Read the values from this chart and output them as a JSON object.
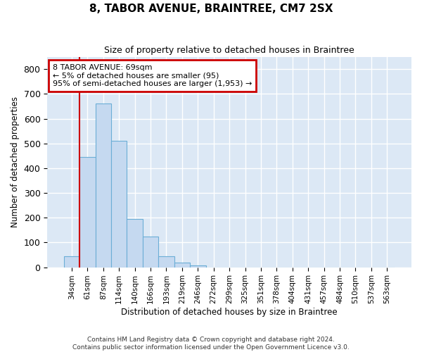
{
  "title": "8, TABOR AVENUE, BRAINTREE, CM7 2SX",
  "subtitle": "Size of property relative to detached houses in Braintree",
  "xlabel": "Distribution of detached houses by size in Braintree",
  "ylabel": "Number of detached properties",
  "bar_color": "#c5d9f0",
  "bar_edge_color": "#6baed6",
  "background_color": "#dce8f5",
  "grid_color": "#ffffff",
  "vline_color": "#cc0000",
  "annotation_box_color": "#cc0000",
  "categories": [
    "34sqm",
    "61sqm",
    "87sqm",
    "114sqm",
    "140sqm",
    "166sqm",
    "193sqm",
    "219sqm",
    "246sqm",
    "272sqm",
    "299sqm",
    "325sqm",
    "351sqm",
    "378sqm",
    "404sqm",
    "431sqm",
    "457sqm",
    "484sqm",
    "510sqm",
    "537sqm",
    "563sqm"
  ],
  "values": [
    45,
    445,
    660,
    510,
    195,
    125,
    45,
    20,
    8,
    0,
    0,
    0,
    0,
    0,
    0,
    0,
    0,
    0,
    0,
    0,
    0
  ],
  "vline_x": 0.5,
  "annotation_text": "8 TABOR AVENUE: 69sqm\n← 5% of detached houses are smaller (95)\n95% of semi-detached houses are larger (1,953) →",
  "ylim": [
    0,
    850
  ],
  "yticks": [
    0,
    100,
    200,
    300,
    400,
    500,
    600,
    700,
    800
  ],
  "figsize": [
    6.0,
    5.0
  ],
  "dpi": 100,
  "footnote": "Contains HM Land Registry data © Crown copyright and database right 2024.\nContains public sector information licensed under the Open Government Licence v3.0."
}
